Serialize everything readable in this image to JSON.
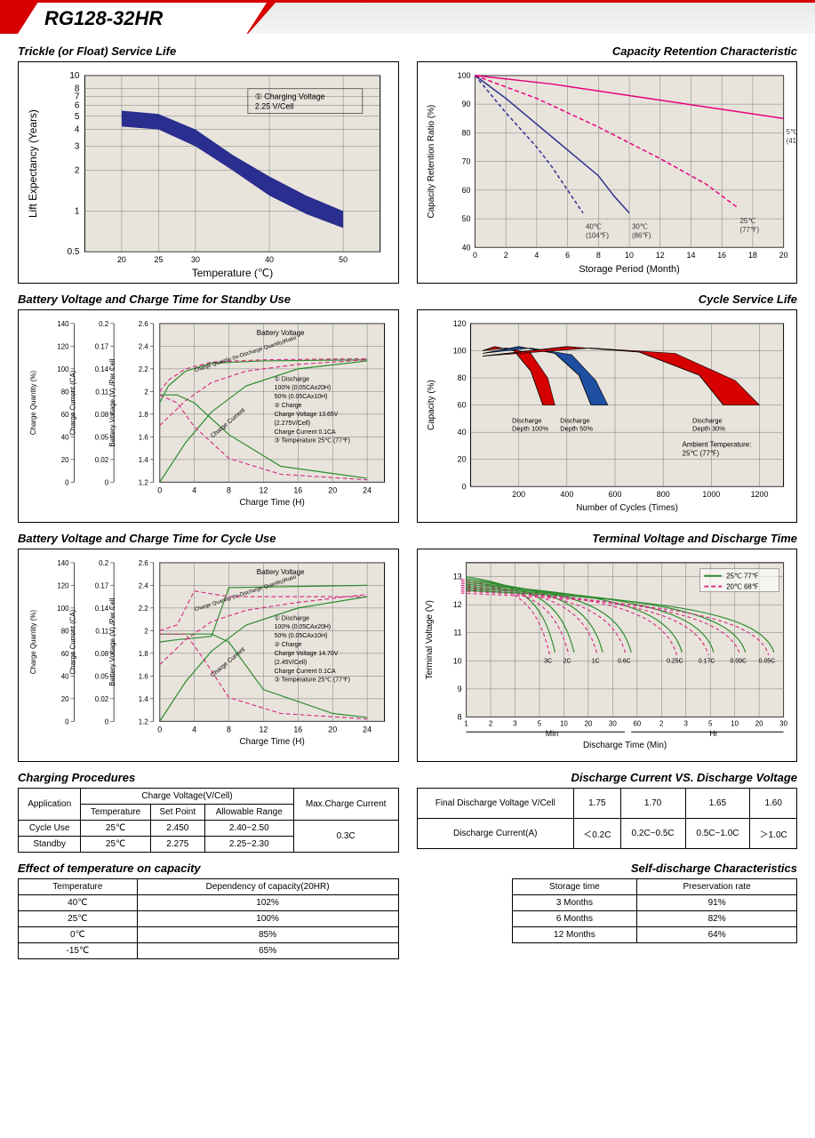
{
  "model": "RG128-32HR",
  "charts": {
    "trickle": {
      "title": "Trickle (or Float) Service Life",
      "xlabel": "Temperature (℃)",
      "ylabel": "Lift  Expectancy (Years)",
      "xlim": [
        15,
        55
      ],
      "xticks": [
        20,
        25,
        30,
        40,
        50
      ],
      "yticks": [
        0.5,
        1,
        2,
        3,
        4,
        5,
        6,
        7,
        8,
        10
      ],
      "note": "① Charging Voltage\n    2.25 V/Cell",
      "band_upper": [
        [
          20,
          5.5
        ],
        [
          25,
          5.2
        ],
        [
          30,
          4.0
        ],
        [
          35,
          2.6
        ],
        [
          40,
          1.8
        ],
        [
          45,
          1.3
        ],
        [
          50,
          1.0
        ]
      ],
      "band_lower": [
        [
          20,
          4.2
        ],
        [
          25,
          4.0
        ],
        [
          30,
          3.0
        ],
        [
          35,
          2.0
        ],
        [
          40,
          1.3
        ],
        [
          45,
          0.95
        ],
        [
          50,
          0.75
        ]
      ],
      "band_color": "#2a2e8f",
      "bg": "#e8e4dc",
      "grid": "#7a7a7a"
    },
    "capacity_retention": {
      "title": "Capacity Retention Characteristic",
      "xlabel": "Storage Period (Month)",
      "ylabel": "Capacity Retention Ratio (%)",
      "xlim": [
        0,
        20
      ],
      "xticks": [
        0,
        2,
        4,
        6,
        8,
        10,
        12,
        14,
        16,
        18,
        20
      ],
      "ylim": [
        40,
        100
      ],
      "yticks": [
        40,
        50,
        60,
        70,
        80,
        90,
        100
      ],
      "curves": [
        {
          "label": "40℃\n(104℉)",
          "color": "#2a2e8f",
          "dash": "4 3",
          "pts": [
            [
              0,
              100
            ],
            [
              2,
              87
            ],
            [
              4,
              75
            ],
            [
              5,
              68
            ],
            [
              6,
              60
            ],
            [
              7,
              52
            ]
          ]
        },
        {
          "label": "30℃\n(86℉)",
          "color": "#2a2e8f",
          "dash": "0",
          "pts": [
            [
              0,
              100
            ],
            [
              2,
              92
            ],
            [
              4,
              83
            ],
            [
              6,
              74
            ],
            [
              8,
              65
            ],
            [
              9,
              58
            ],
            [
              10,
              52
            ]
          ]
        },
        {
          "label": "25℃\n(77℉)",
          "color": "#e6007e",
          "dash": "5 3",
          "pts": [
            [
              0,
              100
            ],
            [
              4,
              92
            ],
            [
              8,
              82
            ],
            [
              12,
              71
            ],
            [
              15,
              62
            ],
            [
              17,
              54
            ]
          ]
        },
        {
          "label": "5℃\n(41℉)",
          "color": "#e6007e",
          "dash": "0",
          "pts": [
            [
              0,
              100
            ],
            [
              5,
              97
            ],
            [
              10,
              93
            ],
            [
              15,
              89
            ],
            [
              20,
              85
            ]
          ]
        }
      ],
      "bg": "#e8e4dc",
      "grid": "#7a7a7a"
    },
    "standby_charge": {
      "title": "Battery Voltage and Charge Time for Standby Use",
      "xlabel": "Charge Time (H)",
      "xlim": [
        0,
        26
      ],
      "xticks": [
        0,
        4,
        8,
        12,
        16,
        20,
        24
      ],
      "axes": [
        {
          "label": "Charge Quantity (%)",
          "ticks": [
            0,
            20,
            40,
            60,
            80,
            100,
            120,
            140
          ]
        },
        {
          "label": "Charge Current (CA)",
          "ticks": [
            0,
            0.02,
            0.05,
            0.08,
            0.11,
            0.14,
            0.17,
            0.2
          ]
        },
        {
          "label": "Battery Voltage (V) /Per Cell",
          "ticks": [
            1.2,
            1.4,
            1.6,
            1.8,
            2.0,
            2.2,
            2.4,
            2.6
          ]
        }
      ],
      "notes": [
        "① Discharge",
        "    100% (0.05CAx20H)",
        "    50% (0.05CAx10H)",
        "② Charge",
        "    Charge Voltage 13.65V",
        "    (2.275V/Cell)",
        "    Charge Current 0.1CA",
        "③ Temperature 25℃ (77℉)"
      ],
      "lines": {
        "battery_voltage_100": {
          "color": "#2e8b2e",
          "dash": "0",
          "pts": [
            [
              0,
              1.9
            ],
            [
              1,
              2.05
            ],
            [
              3,
              2.18
            ],
            [
              6,
              2.25
            ],
            [
              12,
              2.27
            ],
            [
              24,
              2.28
            ]
          ]
        },
        "battery_voltage_50": {
          "color": "#d63384",
          "dash": "5 3",
          "pts": [
            [
              0,
              2.0
            ],
            [
              1,
              2.1
            ],
            [
              3,
              2.2
            ],
            [
              6,
              2.26
            ],
            [
              12,
              2.28
            ],
            [
              24,
              2.29
            ]
          ]
        },
        "charge_qty_100": {
          "color": "#2e8b2e",
          "dash": "0",
          "pts": [
            [
              0,
              0
            ],
            [
              3,
              35
            ],
            [
              6,
              62
            ],
            [
              10,
              85
            ],
            [
              16,
              100
            ],
            [
              24,
              107
            ]
          ]
        },
        "charge_qty_50": {
          "color": "#d63384",
          "dash": "5 3",
          "pts": [
            [
              0,
              50
            ],
            [
              3,
              72
            ],
            [
              6,
              88
            ],
            [
              10,
              98
            ],
            [
              16,
              104
            ],
            [
              24,
              108
            ]
          ]
        },
        "charge_current_100": {
          "color": "#2e8b2e",
          "dash": "0",
          "pts": [
            [
              0,
              0.11
            ],
            [
              2,
              0.11
            ],
            [
              4,
              0.1
            ],
            [
              8,
              0.06
            ],
            [
              14,
              0.02
            ],
            [
              24,
              0.005
            ]
          ]
        },
        "charge_current_50": {
          "color": "#d63384",
          "dash": "5 3",
          "pts": [
            [
              0,
              0.11
            ],
            [
              2,
              0.1
            ],
            [
              4,
              0.07
            ],
            [
              8,
              0.03
            ],
            [
              14,
              0.01
            ],
            [
              24,
              0.003
            ]
          ]
        }
      },
      "bg": "#e8e4dc",
      "grid": "#7a7a7a"
    },
    "cycle_life": {
      "title": "Cycle Service Life",
      "xlabel": "Number of Cycles (Times)",
      "ylabel": "Capacity (%)",
      "xlim": [
        0,
        1300
      ],
      "xticks": [
        200,
        400,
        600,
        800,
        1000,
        1200
      ],
      "ylim": [
        0,
        120
      ],
      "yticks": [
        0,
        20,
        40,
        60,
        80,
        100,
        120
      ],
      "note": "Ambient Temperature:\n25℃ (77℉)",
      "wedges": [
        {
          "label": "Discharge\nDepth 100%",
          "color": "#d60000",
          "outer": [
            [
              50,
              100
            ],
            [
              100,
              103
            ],
            [
              180,
              100
            ],
            [
              250,
              85
            ],
            [
              300,
              60
            ]
          ],
          "inner": [
            [
              50,
              100
            ],
            [
              150,
              102
            ],
            [
              250,
              98
            ],
            [
              320,
              80
            ],
            [
              350,
              60
            ]
          ]
        },
        {
          "label": "Discharge\nDepth 50%",
          "color": "#1e4fa3",
          "outer": [
            [
              50,
              98
            ],
            [
              200,
              103
            ],
            [
              350,
              98
            ],
            [
              450,
              82
            ],
            [
              500,
              60
            ]
          ],
          "inner": [
            [
              50,
              98
            ],
            [
              250,
              102
            ],
            [
              420,
              97
            ],
            [
              520,
              78
            ],
            [
              570,
              60
            ]
          ]
        },
        {
          "label": "Discharge\nDepth 30%",
          "color": "#d60000",
          "outer": [
            [
              50,
              96
            ],
            [
              400,
              103
            ],
            [
              700,
              99
            ],
            [
              950,
              82
            ],
            [
              1050,
              60
            ]
          ],
          "inner": [
            [
              50,
              96
            ],
            [
              500,
              102
            ],
            [
              850,
              98
            ],
            [
              1100,
              78
            ],
            [
              1200,
              60
            ]
          ]
        }
      ],
      "bg": "#e8e4dc",
      "grid": "#7a7a7a"
    },
    "cycle_charge": {
      "title": "Battery Voltage and Charge Time for Cycle Use",
      "xlabel": "Charge Time (H)",
      "xlim": [
        0,
        26
      ],
      "xticks": [
        0,
        4,
        8,
        12,
        16,
        20,
        24
      ],
      "axes": [
        {
          "label": "Charge Quantity (%)",
          "ticks": [
            0,
            20,
            40,
            60,
            80,
            100,
            120,
            140
          ]
        },
        {
          "label": "Charge Current (CA)",
          "ticks": [
            0,
            0.02,
            0.05,
            0.08,
            0.11,
            0.14,
            0.17,
            0.2
          ]
        },
        {
          "label": "Battery Voltage (V) /Per Cell",
          "ticks": [
            1.2,
            1.4,
            1.6,
            1.8,
            2.0,
            2.2,
            2.4,
            2.6
          ]
        }
      ],
      "notes": [
        "① Discharge",
        "    100% (0.05CAx20H)",
        "    50% (0.05CAx10H)",
        "② Charge",
        "    Charge Voltage 14.70V",
        "    (2.45V/Cell)",
        "    Charge Current 0.1CA",
        "③ Temperature 25℃ (77℉)"
      ],
      "lines": {
        "battery_voltage_100": {
          "color": "#2e8b2e",
          "dash": "0",
          "pts": [
            [
              0,
              1.9
            ],
            [
              2,
              1.92
            ],
            [
              6,
              1.95
            ],
            [
              8,
              2.38
            ],
            [
              24,
              2.4
            ]
          ]
        },
        "battery_voltage_50": {
          "color": "#d63384",
          "dash": "5 3",
          "pts": [
            [
              0,
              2.0
            ],
            [
              2,
              2.05
            ],
            [
              4,
              2.35
            ],
            [
              8,
              2.3
            ],
            [
              24,
              2.3
            ]
          ]
        },
        "charge_qty_100": {
          "color": "#2e8b2e",
          "dash": "0",
          "pts": [
            [
              0,
              0
            ],
            [
              3,
              35
            ],
            [
              6,
              62
            ],
            [
              10,
              85
            ],
            [
              16,
              100
            ],
            [
              24,
              110
            ]
          ]
        },
        "charge_qty_50": {
          "color": "#d63384",
          "dash": "5 3",
          "pts": [
            [
              0,
              50
            ],
            [
              3,
              72
            ],
            [
              6,
              88
            ],
            [
              10,
              98
            ],
            [
              16,
              105
            ],
            [
              24,
              112
            ]
          ]
        },
        "charge_current_100": {
          "color": "#2e8b2e",
          "dash": "0",
          "pts": [
            [
              0,
              0.11
            ],
            [
              6,
              0.11
            ],
            [
              8,
              0.1
            ],
            [
              12,
              0.04
            ],
            [
              20,
              0.01
            ],
            [
              24,
              0.005
            ]
          ]
        },
        "charge_current_50": {
          "color": "#d63384",
          "dash": "5 3",
          "pts": [
            [
              0,
              0.11
            ],
            [
              3,
              0.11
            ],
            [
              5,
              0.08
            ],
            [
              8,
              0.03
            ],
            [
              14,
              0.01
            ],
            [
              24,
              0.003
            ]
          ]
        }
      },
      "bg": "#e8e4dc",
      "grid": "#7a7a7a"
    },
    "terminal_voltage": {
      "title": "Terminal Voltage and Discharge Time",
      "xlabel": "Discharge Time (Min)",
      "ylabel": "Terminal Voltage (V)",
      "ylim": [
        8,
        13.5
      ],
      "yticks": [
        8,
        9,
        10,
        11,
        12,
        13
      ],
      "legend": [
        {
          "label": "25℃ 77℉",
          "color": "#2e8b2e",
          "dash": "0"
        },
        {
          "label": "20℃ 68℉",
          "color": "#d63384",
          "dash": "5 3"
        }
      ],
      "rates": [
        "3C",
        "2C",
        "1C",
        "0.6C",
        "0.25C",
        "0.17C",
        "0.09C",
        "0.05C"
      ],
      "x_breaks": [
        "1",
        "2",
        "3",
        "5",
        "10",
        "20",
        "30",
        "60",
        "2",
        "3",
        "5",
        "10",
        "20",
        "30"
      ],
      "x_sections": [
        "Min",
        "Hr"
      ],
      "bg": "#e8e4dc",
      "grid": "#7a7a7a"
    }
  },
  "tables": {
    "charging": {
      "title": "Charging Procedures",
      "headers": {
        "app": "Application",
        "cv": "Charge Voltage(V/Cell)",
        "temp": "Temperature",
        "sp": "Set Point",
        "ar": "Allowable Range",
        "max": "Max.Charge Current"
      },
      "rows": [
        {
          "app": "Cycle Use",
          "temp": "25℃",
          "sp": "2.450",
          "ar": "2.40~2.50"
        },
        {
          "app": "Standby",
          "temp": "25℃",
          "sp": "2.275",
          "ar": "2.25~2.30"
        }
      ],
      "max": "0.3C"
    },
    "discharge_vs": {
      "title": "Discharge Current VS. Discharge Voltage",
      "r1": [
        "Final Discharge Voltage V/Cell",
        "1.75",
        "1.70",
        "1.65",
        "1.60"
      ],
      "r2": [
        "Discharge Current(A)",
        "＜0.2C",
        "0.2C~0.5C",
        "0.5C~1.0C",
        "＞1.0C"
      ]
    },
    "temp_effect": {
      "title": "Effect of temperature on capacity",
      "headers": [
        "Temperature",
        "Dependency of capacity(20HR)"
      ],
      "rows": [
        [
          "40℃",
          "102%"
        ],
        [
          "25℃",
          "100%"
        ],
        [
          "0℃",
          "85%"
        ],
        [
          "-15℃",
          "65%"
        ]
      ]
    },
    "self_discharge": {
      "title": "Self-discharge Characteristics",
      "headers": [
        "Storage time",
        "Preservation rate"
      ],
      "rows": [
        [
          "3 Months",
          "91%"
        ],
        [
          "6 Months",
          "82%"
        ],
        [
          "12 Months",
          "64%"
        ]
      ]
    }
  }
}
